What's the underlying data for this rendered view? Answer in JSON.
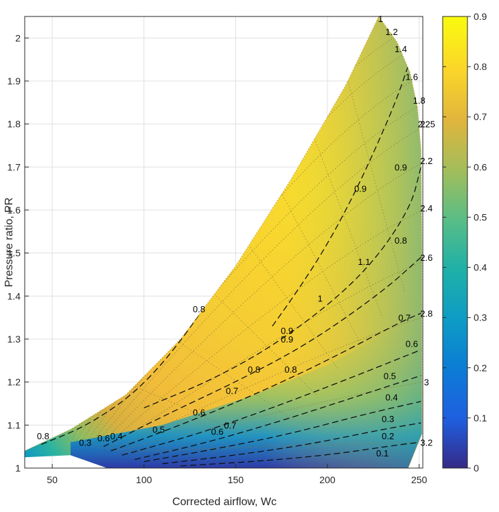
{
  "chart_data": {
    "type": "heatmap",
    "title": "",
    "xlabel": "Corrected airflow, Wc",
    "ylabel": "Pressure ratio, PR",
    "xlim": [
      35,
      252
    ],
    "ylim": [
      1,
      2.05
    ],
    "xticks": [
      50,
      100,
      150,
      200,
      250
    ],
    "yticks": [
      1,
      1.1,
      1.2,
      1.3,
      1.4,
      1.5,
      1.6,
      1.7,
      1.8,
      1.9,
      2
    ],
    "grid": true,
    "colorbar": {
      "label": "",
      "range": [
        0,
        0.9
      ],
      "ticks": [
        0,
        0.1,
        0.2,
        0.3,
        0.4,
        0.5,
        0.6,
        0.7,
        0.8,
        0.9
      ],
      "colormap": "parula"
    },
    "surge_line": [
      [
        35,
        1.04
      ],
      [
        60,
        1.09
      ],
      [
        90,
        1.17
      ],
      [
        120,
        1.3
      ],
      [
        150,
        1.47
      ],
      [
        180,
        1.67
      ],
      [
        210,
        1.89
      ],
      [
        228,
        2.05
      ]
    ],
    "choke_edge": [
      [
        228,
        2.05
      ],
      [
        238,
        1.99
      ],
      [
        245,
        1.92
      ],
      [
        249,
        1.84
      ],
      [
        251,
        1.74
      ],
      [
        251.5,
        1.5
      ],
      [
        251.5,
        1.2
      ],
      [
        251.5,
        1.08
      ],
      [
        244,
        1.0
      ]
    ],
    "efficiency_contours": [
      {
        "level": "0.1",
        "points": [
          [
            120,
            1.005
          ],
          [
            160,
            1.015
          ],
          [
            200,
            1.03
          ],
          [
            240,
            1.055
          ],
          [
            251,
            1.06
          ]
        ]
      },
      {
        "level": "0.2",
        "points": [
          [
            110,
            1.01
          ],
          [
            150,
            1.03
          ],
          [
            190,
            1.055
          ],
          [
            230,
            1.09
          ],
          [
            251,
            1.105
          ]
        ]
      },
      {
        "level": "0.3",
        "points": [
          [
            100,
            1.015
          ],
          [
            140,
            1.045
          ],
          [
            180,
            1.08
          ],
          [
            220,
            1.125
          ],
          [
            251,
            1.155
          ]
        ]
      },
      {
        "level": "0.4",
        "points": [
          [
            95,
            1.02
          ],
          [
            135,
            1.06
          ],
          [
            175,
            1.11
          ],
          [
            215,
            1.165
          ],
          [
            251,
            1.215
          ]
        ]
      },
      {
        "level": "0.5",
        "points": [
          [
            88,
            1.03
          ],
          [
            130,
            1.08
          ],
          [
            170,
            1.14
          ],
          [
            210,
            1.205
          ],
          [
            251,
            1.275
          ]
        ]
      },
      {
        "level": "0.6",
        "points": [
          [
            82,
            1.04
          ],
          [
            120,
            1.1
          ],
          [
            160,
            1.17
          ],
          [
            200,
            1.25
          ],
          [
            240,
            1.34
          ],
          [
            251,
            1.36
          ]
        ]
      },
      {
        "level": "0.7",
        "points": [
          [
            78,
            1.05
          ],
          [
            110,
            1.12
          ],
          [
            150,
            1.2
          ],
          [
            190,
            1.29
          ],
          [
            230,
            1.41
          ],
          [
            251,
            1.49
          ]
        ]
      },
      {
        "level": "0.8",
        "points": [
          [
            44,
            1.055
          ],
          [
            70,
            1.1
          ],
          [
            100,
            1.19
          ],
          [
            130,
            1.35
          ],
          [
            150,
            1.5
          ]
        ]
      },
      {
        "level": "0.8",
        "points": [
          [
            100,
            1.14
          ],
          [
            140,
            1.21
          ],
          [
            180,
            1.31
          ],
          [
            220,
            1.45
          ],
          [
            245,
            1.6
          ],
          [
            251,
            1.7
          ]
        ]
      },
      {
        "level": "0.9",
        "points": [
          [
            170,
            1.33
          ],
          [
            185,
            1.42
          ],
          [
            200,
            1.52
          ],
          [
            215,
            1.64
          ],
          [
            228,
            1.76
          ],
          [
            238,
            1.86
          ],
          [
            246,
            1.96
          ]
        ]
      }
    ],
    "speed_line_labels": [
      "1",
      "1.2",
      "1.4",
      "1.6",
      "1.8",
      "2",
      "2.2",
      "2.4",
      "2.6",
      "2.8",
      "3",
      "3.2"
    ],
    "annotations": [
      {
        "text": "1",
        "x": 229,
        "y": 2.045
      },
      {
        "text": "1.2",
        "x": 235,
        "y": 2.015
      },
      {
        "text": "1.4",
        "x": 240,
        "y": 1.975
      },
      {
        "text": "1.6",
        "x": 246,
        "y": 1.91
      },
      {
        "text": "1.8",
        "x": 250,
        "y": 1.855
      },
      {
        "text": "2",
        "x": 252,
        "y": 1.8
      },
      {
        "text": "2.25",
        "x": 254,
        "y": 1.8
      },
      {
        "text": "2.2",
        "x": 254,
        "y": 1.715
      },
      {
        "text": "2.4",
        "x": 254,
        "y": 1.605
      },
      {
        "text": "2.6",
        "x": 254,
        "y": 1.49
      },
      {
        "text": "2.8",
        "x": 254,
        "y": 1.36
      },
      {
        "text": "3",
        "x": 254,
        "y": 1.2
      },
      {
        "text": "3.2",
        "x": 254,
        "y": 1.06
      },
      {
        "text": "0.9",
        "x": 218,
        "y": 1.65
      },
      {
        "text": "0.9",
        "x": 240,
        "y": 1.7
      },
      {
        "text": "1.1",
        "x": 220,
        "y": 1.48
      },
      {
        "text": "1",
        "x": 196,
        "y": 1.395
      },
      {
        "text": "0.9",
        "x": 178,
        "y": 1.32
      },
      {
        "text": "0.9",
        "x": 178,
        "y": 1.3
      },
      {
        "text": "0.8",
        "x": 130,
        "y": 1.37
      },
      {
        "text": "0.8",
        "x": 160,
        "y": 1.23
      },
      {
        "text": "0.8",
        "x": 180,
        "y": 1.23
      },
      {
        "text": "0.8",
        "x": 240,
        "y": 1.53
      },
      {
        "text": "0.7",
        "x": 148,
        "y": 1.18
      },
      {
        "text": "0.7",
        "x": 242,
        "y": 1.35
      },
      {
        "text": "0.6",
        "x": 130,
        "y": 1.13
      },
      {
        "text": "0.6",
        "x": 246,
        "y": 1.29
      },
      {
        "text": "0.5",
        "x": 108,
        "y": 1.09
      },
      {
        "text": "0.5",
        "x": 234,
        "y": 1.215
      },
      {
        "text": "0.4",
        "x": 235,
        "y": 1.165
      },
      {
        "text": "0.3",
        "x": 233,
        "y": 1.115
      },
      {
        "text": "0.2",
        "x": 233,
        "y": 1.075
      },
      {
        "text": "0.1",
        "x": 230,
        "y": 1.035
      },
      {
        "text": "0.8",
        "x": 45,
        "y": 1.075
      },
      {
        "text": "0.3",
        "x": 68,
        "y": 1.06
      },
      {
        "text": "0.4",
        "x": 85,
        "y": 1.075
      },
      {
        "text": "0.6",
        "x": 78,
        "y": 1.07
      },
      {
        "text": "0.7",
        "x": 147,
        "y": 1.1
      },
      {
        "text": "0.6",
        "x": 140,
        "y": 1.085
      }
    ]
  }
}
